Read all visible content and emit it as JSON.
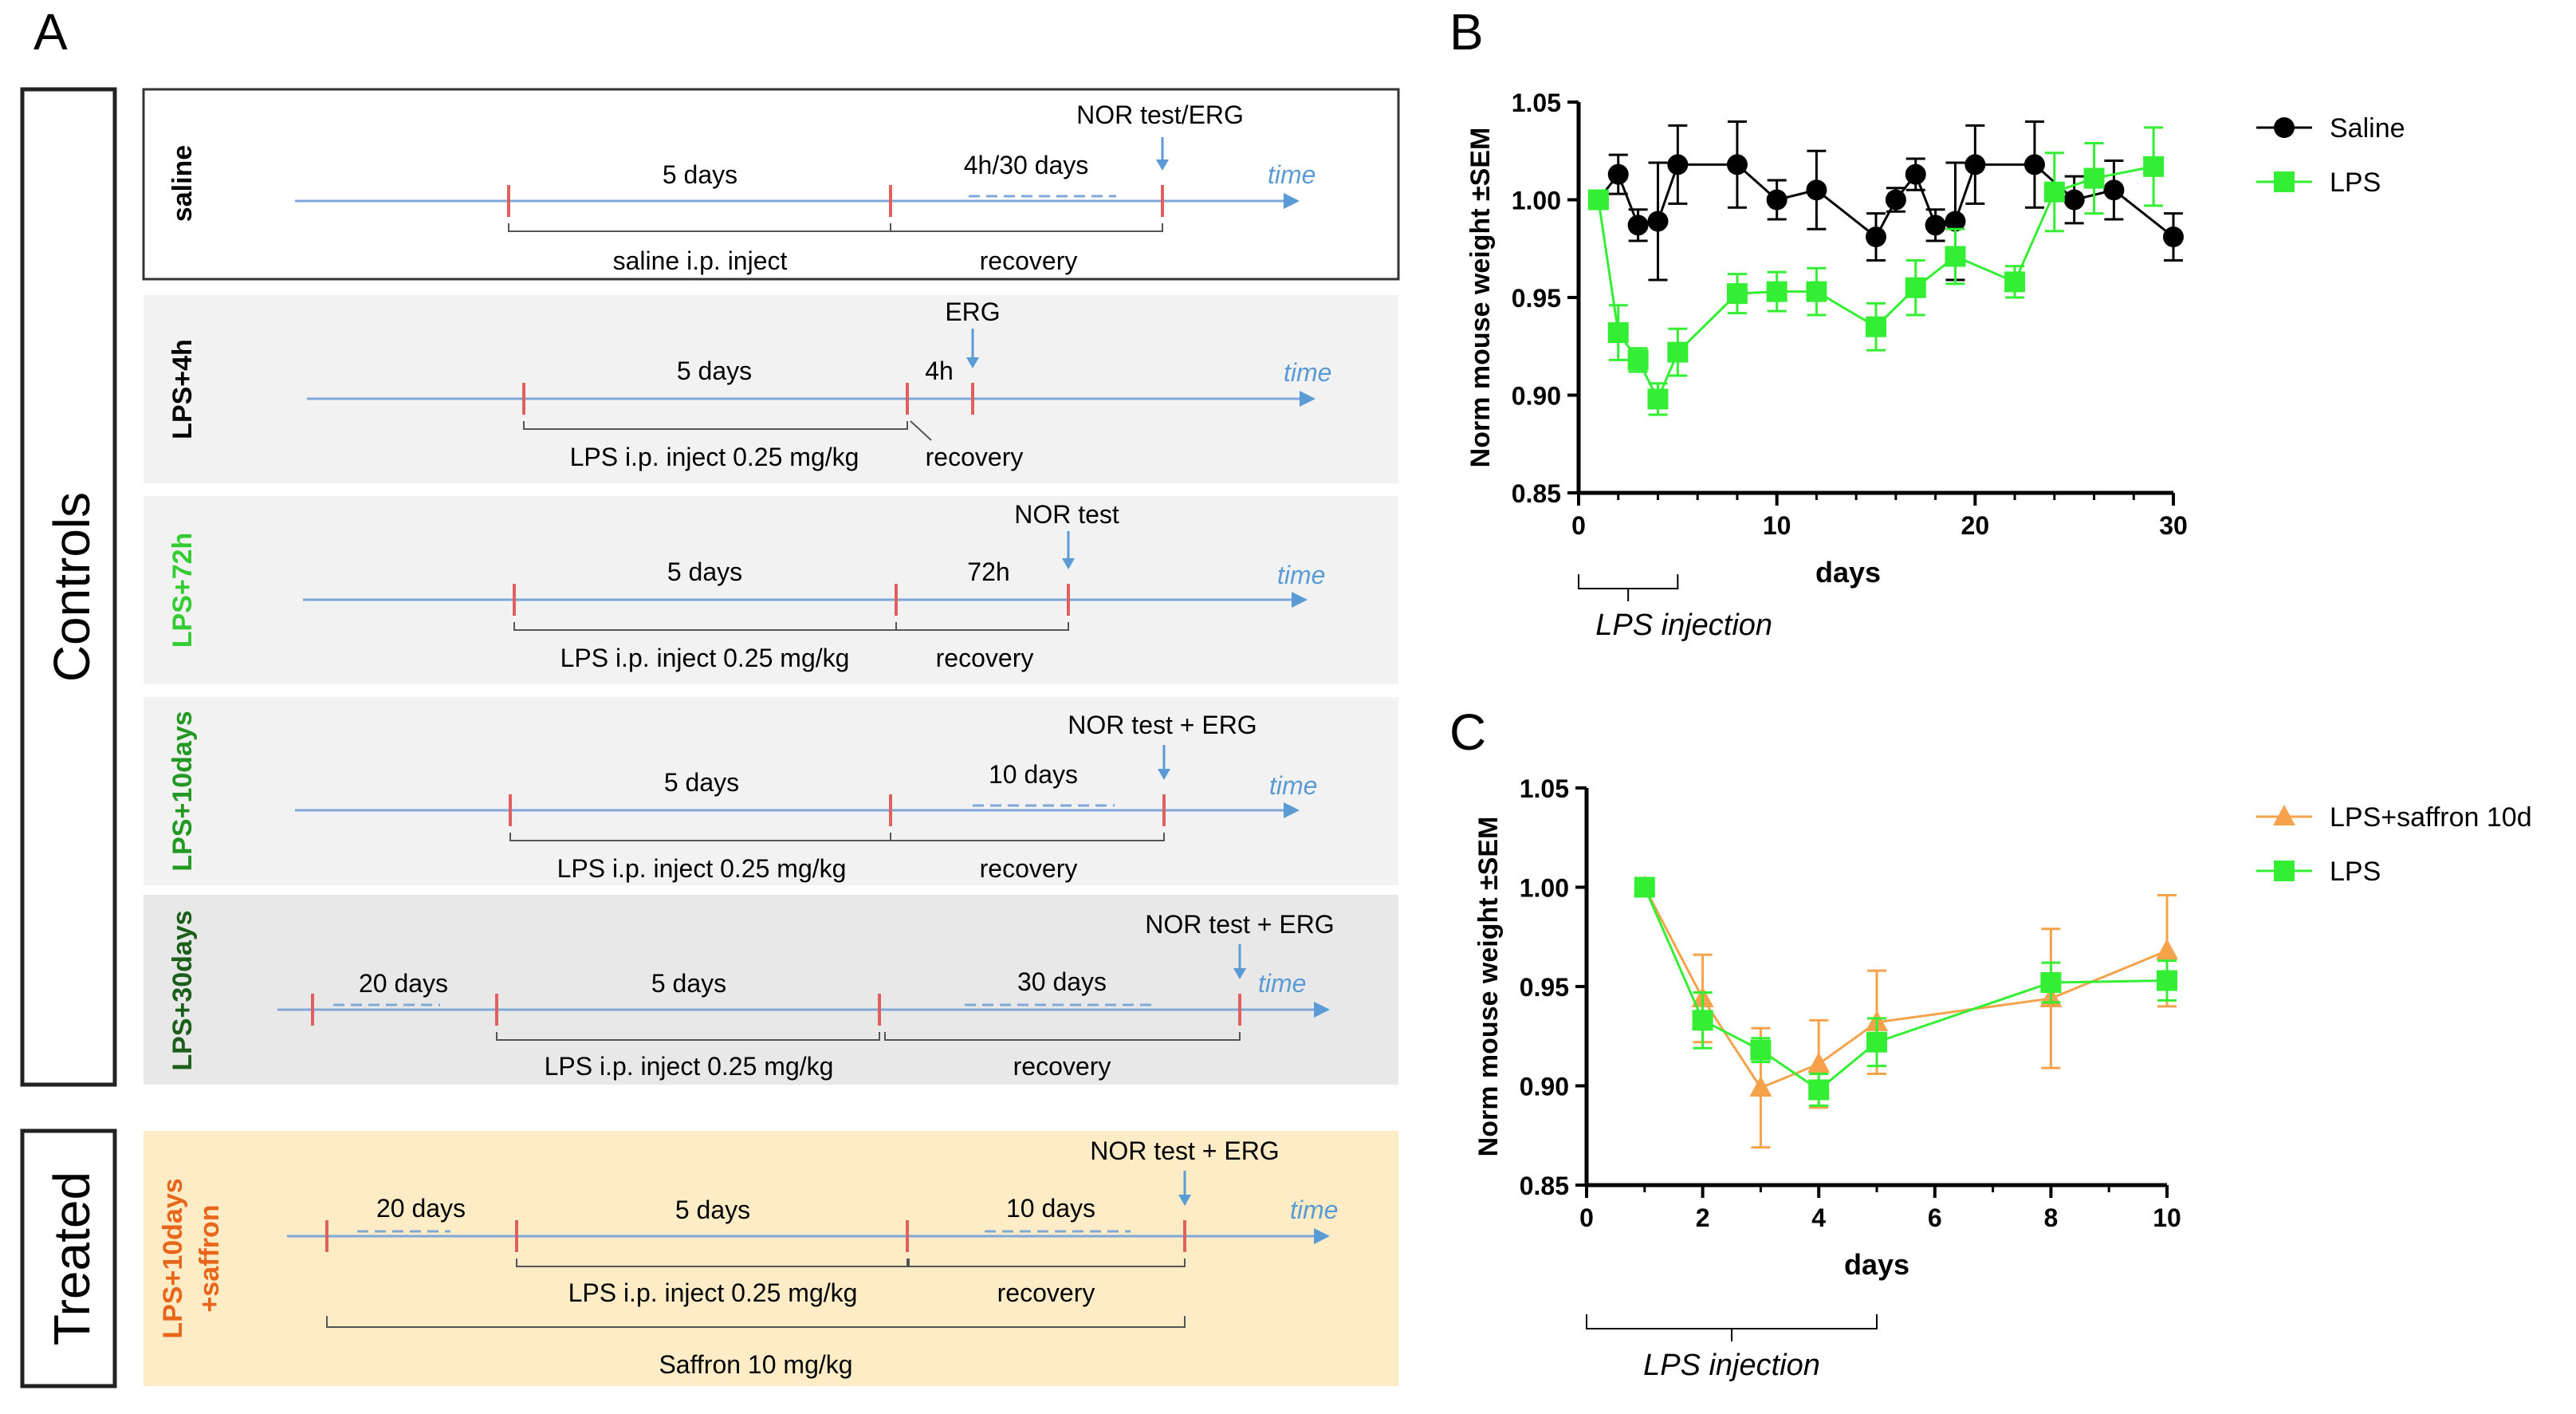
{
  "panel_labels": {
    "a": "A",
    "b": "B",
    "c": "C"
  },
  "groups": {
    "controls": "Controls",
    "treated": "Treated"
  },
  "protocols": [
    {
      "label": "saline",
      "label_color": "#000000",
      "pre_text": "",
      "span_text": "5 days",
      "post_text": "4h/30 days",
      "test_text": "NOR test/ERG",
      "bottom_left": "saline i.p. inject",
      "bottom_right": "recovery",
      "time_label": "time",
      "extra_text": ""
    },
    {
      "label": "LPS+4h",
      "label_color": "#000000",
      "pre_text": "",
      "span_text": "5 days",
      "post_text": "4h",
      "test_text": "ERG",
      "bottom_left": "LPS i.p. inject 0.25 mg/kg",
      "bottom_right": "recovery",
      "time_label": "time",
      "extra_text": ""
    },
    {
      "label": "LPS+72h",
      "label_color": "#33cc33",
      "pre_text": "",
      "span_text": "5 days",
      "post_text": "72h",
      "test_text": "NOR test",
      "bottom_left": "LPS i.p. inject 0.25 mg/kg",
      "bottom_right": "recovery",
      "time_label": "time",
      "extra_text": ""
    },
    {
      "label": "LPS+10days",
      "label_color": "#229922",
      "pre_text": "",
      "span_text": "5 days",
      "post_text": "10 days",
      "test_text": "NOR test + ERG",
      "bottom_left": "LPS i.p. inject 0.25 mg/kg",
      "bottom_right": "recovery",
      "time_label": "time",
      "extra_text": ""
    },
    {
      "label": "LPS+30days",
      "label_color": "#1a5e1a",
      "pre_text": "20 days",
      "span_text": "5 days",
      "post_text": "30 days",
      "test_text": "NOR test + ERG",
      "bottom_left": "LPS i.p. inject 0.25 mg/kg",
      "bottom_right": "recovery",
      "time_label": "time",
      "extra_text": ""
    },
    {
      "label": "LPS+10days",
      "label2": "+saffron",
      "label_color": "#e8661a",
      "pre_text": "20 days",
      "span_text": "5 days",
      "post_text": "10 days",
      "test_text": "NOR test + ERG",
      "bottom_left": "LPS i.p. inject 0.25 mg/kg",
      "bottom_right": "recovery",
      "time_label": "time",
      "extra_text": "Saffron 10 mg/kg"
    }
  ],
  "chart_data": [
    {
      "panel": "B",
      "type": "line",
      "title": "",
      "xlabel": "days",
      "ylabel": "Norm mouse weight ±SEM",
      "xlim": [
        0,
        30
      ],
      "ylim": [
        0.85,
        1.05
      ],
      "xticks": [
        0,
        10,
        20,
        30
      ],
      "yticks": [
        0.85,
        0.9,
        0.95,
        1.0,
        1.05
      ],
      "ytick_labels": [
        "0.85",
        "0.90",
        "0.95",
        "1.00",
        "1.05"
      ],
      "annotation": "LPS injection",
      "legend_position": "right",
      "series": [
        {
          "name": "Saline",
          "color": "#000000",
          "marker": "circle",
          "x": [
            1,
            2,
            3,
            4,
            5,
            8,
            10,
            12,
            15,
            16,
            17,
            18,
            19,
            20,
            23,
            25,
            27,
            30
          ],
          "y": [
            1.0,
            1.013,
            0.987,
            0.989,
            1.018,
            1.018,
            1.0,
            1.005,
            0.981,
            1.0,
            1.013,
            0.987,
            0.989,
            1.018,
            1.018,
            1.0,
            1.005,
            0.981
          ],
          "err": [
            0.0,
            0.01,
            0.008,
            0.03,
            0.02,
            0.022,
            0.01,
            0.02,
            0.012,
            0.006,
            0.008,
            0.008,
            0.03,
            0.02,
            0.022,
            0.012,
            0.015,
            0.012
          ]
        },
        {
          "name": "LPS",
          "color": "#33ee33",
          "marker": "square",
          "x": [
            1,
            2,
            3,
            4,
            5,
            8,
            10,
            12,
            15,
            17,
            19,
            22,
            24,
            26,
            29
          ],
          "y": [
            1.0,
            0.932,
            0.918,
            0.898,
            0.922,
            0.952,
            0.953,
            0.953,
            0.935,
            0.955,
            0.971,
            0.958,
            1.004,
            1.011,
            1.017
          ],
          "err": [
            0.0,
            0.014,
            0.006,
            0.008,
            0.012,
            0.01,
            0.01,
            0.012,
            0.012,
            0.014,
            0.014,
            0.008,
            0.02,
            0.018,
            0.02
          ]
        }
      ]
    },
    {
      "panel": "C",
      "type": "line",
      "title": "",
      "xlabel": "days",
      "ylabel": "Norm mouse weight ±SEM",
      "xlim": [
        0,
        10
      ],
      "ylim": [
        0.85,
        1.05
      ],
      "xticks": [
        0,
        2,
        4,
        6,
        8,
        10
      ],
      "yticks": [
        0.85,
        0.9,
        0.95,
        1.0,
        1.05
      ],
      "ytick_labels": [
        "0.85",
        "0.90",
        "0.95",
        "1.00",
        "1.05"
      ],
      "annotation": "LPS injection",
      "legend_position": "right",
      "series": [
        {
          "name": "LPS+saffron 10d",
          "color": "#f5a24a",
          "marker": "triangle",
          "x": [
            1,
            2,
            3,
            4,
            5,
            8,
            10
          ],
          "y": [
            1.0,
            0.944,
            0.899,
            0.911,
            0.932,
            0.944,
            0.968
          ],
          "err": [
            0.0,
            0.022,
            0.03,
            0.022,
            0.026,
            0.035,
            0.028
          ]
        },
        {
          "name": "LPS",
          "color": "#33ee33",
          "marker": "square",
          "x": [
            1,
            2,
            3,
            4,
            5,
            8,
            10
          ],
          "y": [
            1.0,
            0.933,
            0.918,
            0.898,
            0.922,
            0.952,
            0.953
          ],
          "err": [
            0.0,
            0.014,
            0.006,
            0.008,
            0.012,
            0.01,
            0.01
          ]
        }
      ]
    }
  ]
}
